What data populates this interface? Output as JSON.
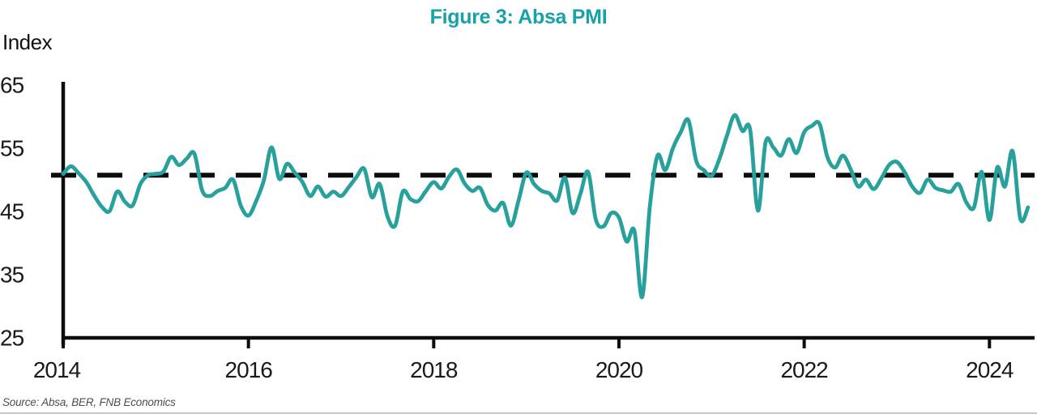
{
  "title": "Figure 3: Absa PMI",
  "y_axis_title": "Index",
  "source_note": "Source: Absa, BER, FNB Economics",
  "colors": {
    "title_teal": "#17a1a9",
    "line_teal": "#28a19d",
    "axis_black": "#0d0d0d",
    "dashed_black": "#0d0d0d",
    "tick_text": "#1a1a1a",
    "source_gray": "#4d4d4d"
  },
  "chart_data": {
    "type": "line",
    "title": "Figure 3: Absa PMI",
    "ylabel": "Index",
    "ylim": [
      25,
      65
    ],
    "yticks": [
      65,
      55,
      45,
      35,
      25
    ],
    "xticks": [
      2014,
      2016,
      2018,
      2020,
      2022,
      2024
    ],
    "x_start": "2014-01",
    "x_end": "2024-06",
    "frequency": "monthly",
    "grid": false,
    "legend_position": "none",
    "reference_line": {
      "value": 51,
      "style": "dashed",
      "color": "#0d0d0d"
    },
    "series": [
      {
        "name": "Absa PMI",
        "color": "#28a19d",
        "values": [
          51.2,
          52.4,
          51.3,
          49.9,
          47.8,
          46.0,
          45.3,
          48.4,
          46.8,
          46.2,
          49.6,
          51.0,
          51.2,
          51.6,
          53.9,
          52.6,
          53.6,
          54.4,
          48.6,
          47.7,
          48.5,
          49.0,
          50.3,
          46.2,
          44.6,
          46.9,
          50.2,
          55.4,
          50.4,
          52.8,
          51.4,
          49.9,
          47.7,
          49.2,
          47.6,
          48.4,
          47.7,
          49.1,
          50.7,
          52.0,
          47.5,
          49.6,
          44.5,
          43.0,
          48.4,
          47.2,
          46.9,
          48.5,
          49.9,
          48.9,
          50.8,
          51.9,
          49.7,
          48.5,
          49.0,
          46.3,
          45.4,
          46.6,
          43.0,
          47.0,
          51.4,
          49.6,
          48.5,
          48.1,
          47.0,
          50.6,
          45.0,
          48.0,
          51.5,
          44.0,
          42.9,
          45.0,
          44.3,
          40.5,
          42.2,
          31.7,
          46.0,
          54.1,
          51.8,
          55.3,
          57.8,
          59.7,
          53.3,
          51.8,
          50.9,
          53.5,
          57.3,
          60.5,
          58.0,
          58.2,
          45.4,
          56.2,
          55.4,
          54.1,
          56.7,
          54.5,
          57.8,
          58.8,
          59.1,
          53.9,
          52.2,
          54.1,
          52.0,
          49.2,
          50.3,
          48.8,
          50.5,
          52.6,
          53.1,
          51.5,
          49.2,
          48.2,
          50.3,
          49.0,
          48.6,
          48.4,
          49.6,
          46.7,
          45.9,
          51.5,
          43.9,
          52.2,
          49.2,
          54.8,
          44.1,
          45.9
        ]
      }
    ]
  }
}
